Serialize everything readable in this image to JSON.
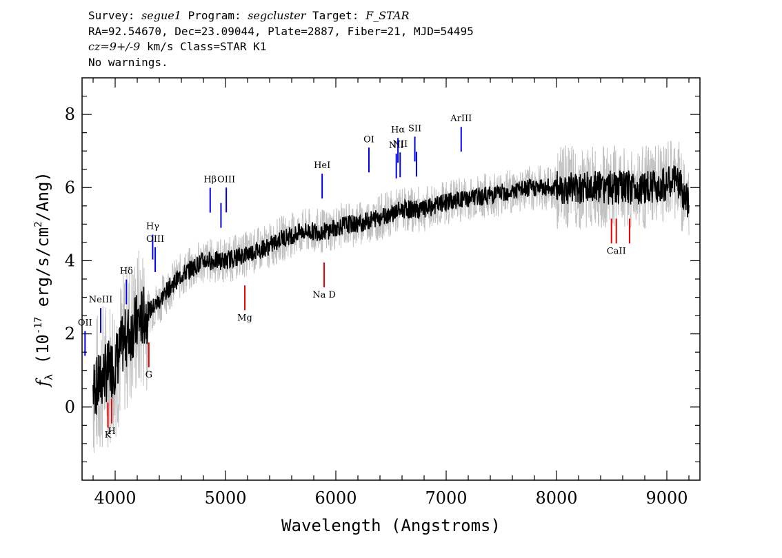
{
  "header": {
    "line1": {
      "survey_label": "Survey:",
      "survey": "segue1",
      "program_label": "Program:",
      "program": "segcluster",
      "target_label": "Target:",
      "target": "F_STAR"
    },
    "line2": "RA=92.54670, Dec=23.09044, Plate=2887, Fiber=21, MJD=54495",
    "line3": {
      "cz": "cz=9+/-9",
      "rest": "km/s Class=STAR K1"
    },
    "line4": "No warnings."
  },
  "chart_data": {
    "type": "line",
    "title": "",
    "xlabel": "Wavelength (Angstroms)",
    "ylabel": "f_λ (10^-17 erg/s/cm^2/Ang)",
    "xlim": [
      3700,
      9300
    ],
    "ylim": [
      -2,
      9
    ],
    "xticks": [
      4000,
      5000,
      6000,
      7000,
      8000,
      9000
    ],
    "yticks": [
      0,
      2,
      4,
      6,
      8
    ],
    "colors": {
      "flux": "#000000",
      "error": "#c0c0c0",
      "emission": "#0000ee",
      "absorption": "#ee0000"
    },
    "series": [
      {
        "kind": "smoothed flux",
        "x": [
          3800,
          3850,
          3900,
          3950,
          4000,
          4100,
          4200,
          4300,
          4400,
          4500,
          4600,
          4700,
          4800,
          4900,
          5000,
          5100,
          5200,
          5300,
          5400,
          5500,
          5600,
          5700,
          5800,
          5900,
          6000,
          6100,
          6200,
          6300,
          6400,
          6500,
          6600,
          6700,
          6800,
          6900,
          7000,
          7200,
          7400,
          7600,
          7800,
          8000,
          8200,
          8400,
          8600,
          8800,
          9000,
          9100,
          9200
        ],
        "y": [
          0.5,
          0.6,
          0.9,
          1.0,
          1.2,
          1.9,
          2.3,
          2.6,
          2.9,
          3.3,
          3.6,
          3.8,
          4.0,
          4.0,
          4.0,
          4.1,
          4.2,
          4.3,
          4.4,
          4.6,
          4.7,
          4.8,
          4.8,
          4.8,
          4.9,
          5.0,
          5.0,
          5.1,
          5.2,
          5.3,
          5.4,
          5.4,
          5.4,
          5.5,
          5.6,
          5.7,
          5.8,
          5.9,
          6.0,
          6.0,
          6.0,
          6.0,
          6.0,
          6.0,
          6.1,
          6.2,
          5.5
        ]
      }
    ],
    "emission_lines": [
      {
        "label": "OII",
        "x": 3727
      },
      {
        "label": "NeIII",
        "x": 3869
      },
      {
        "label": "Hδ",
        "x": 4102
      },
      {
        "label": "Hγ",
        "x": 4340
      },
      {
        "label": "OIII",
        "x": 4363
      },
      {
        "label": "Hβ",
        "x": 4861
      },
      {
        "label": "",
        "x": 4959
      },
      {
        "label": "OIII",
        "x": 5007
      },
      {
        "label": "HeI",
        "x": 5876
      },
      {
        "label": "OI",
        "x": 6300
      },
      {
        "label": "NII",
        "x": 6548
      },
      {
        "label": "Hα",
        "x": 6563
      },
      {
        "label": "NII",
        "x": 6583
      },
      {
        "label": "SII",
        "x": 6716
      },
      {
        "label": "",
        "x": 6731
      },
      {
        "label": "ArIII",
        "x": 7136
      }
    ],
    "absorption_lines": [
      {
        "label": "K",
        "x": 3934
      },
      {
        "label": "H",
        "x": 3969
      },
      {
        "label": "G",
        "x": 4305
      },
      {
        "label": "Mg",
        "x": 5175
      },
      {
        "label": "Na D",
        "x": 5894
      },
      {
        "label": "",
        "x": 8498
      },
      {
        "label": "CaII",
        "x": 8542
      },
      {
        "label": "",
        "x": 8662
      }
    ]
  }
}
